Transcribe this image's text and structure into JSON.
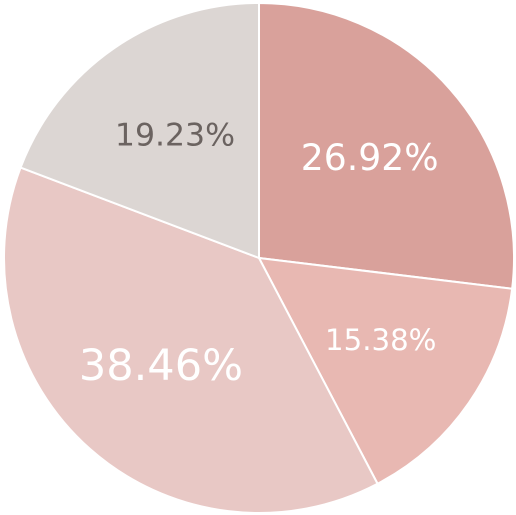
{
  "chart_data": {
    "type": "pie",
    "values": [
      26.92,
      15.38,
      38.46,
      19.23
    ],
    "value_labels": [
      "26.92%",
      "15.38%",
      "38.46%",
      "19.23%"
    ],
    "colors": [
      "#d9a19b",
      "#e8b8b2",
      "#e8c8c5",
      "#dcd6d3"
    ],
    "label_colors": [
      "#ffffff",
      "#ffffff",
      "#ffffff",
      "#6b6360"
    ]
  }
}
